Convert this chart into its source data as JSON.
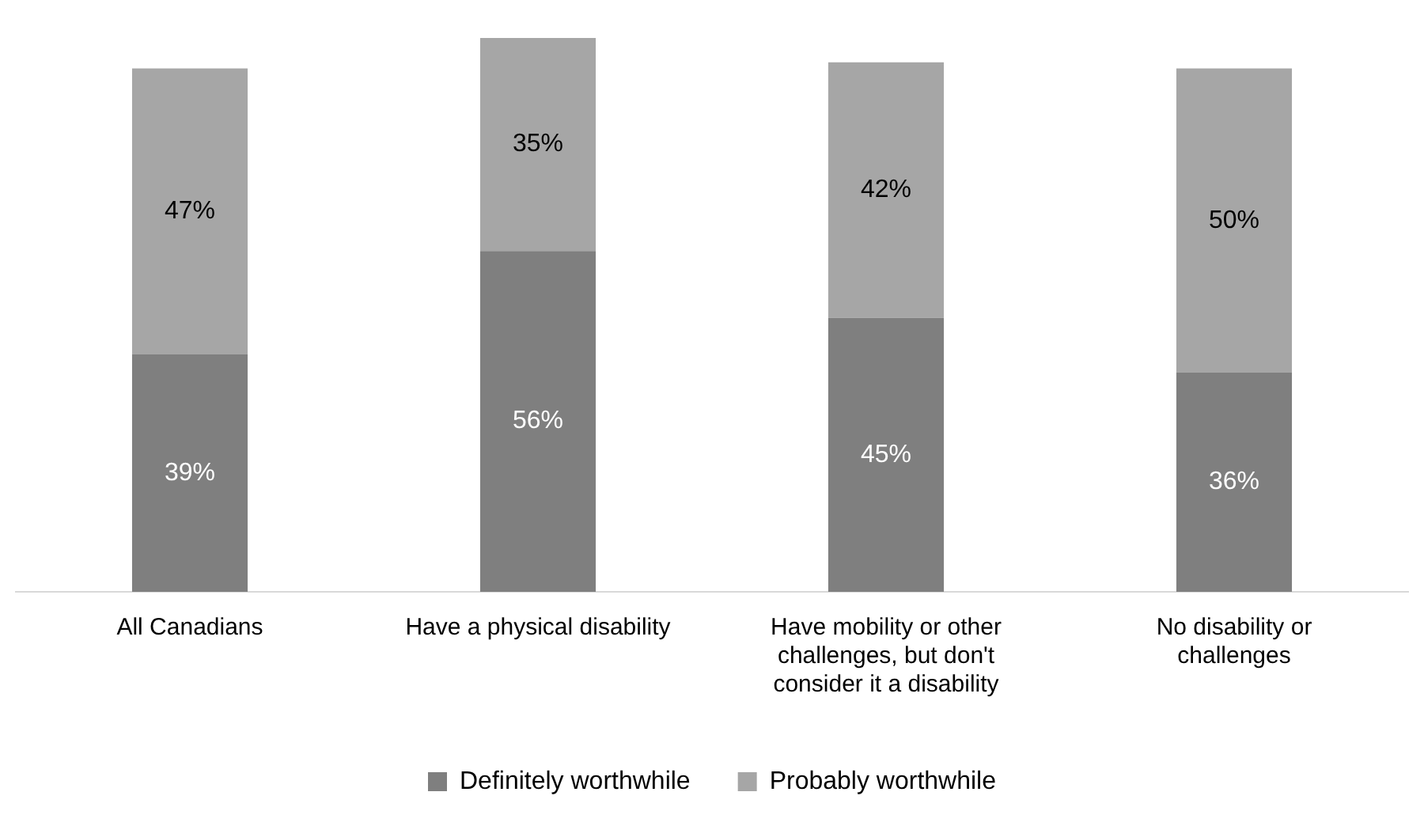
{
  "chart_data": {
    "type": "bar",
    "stacked": true,
    "categories": [
      "All Canadians",
      "Have a physical disability",
      "Have mobility or other challenges, but don't consider it a disability",
      "No disability or challenges"
    ],
    "series": [
      {
        "name": "Definitely worthwhile",
        "color": "#7f7f7f",
        "values": [
          39,
          56,
          45,
          36
        ],
        "value_labels": [
          "39%",
          "56%",
          "45%",
          "36%"
        ]
      },
      {
        "name": "Probably worthwhile",
        "color": "#a6a6a6",
        "values": [
          47,
          35,
          42,
          50
        ],
        "value_labels": [
          "47%",
          "35%",
          "42%",
          "50%"
        ]
      }
    ],
    "ylim": [
      0,
      91
    ],
    "tick_labels": "x",
    "legend": "bottom"
  }
}
